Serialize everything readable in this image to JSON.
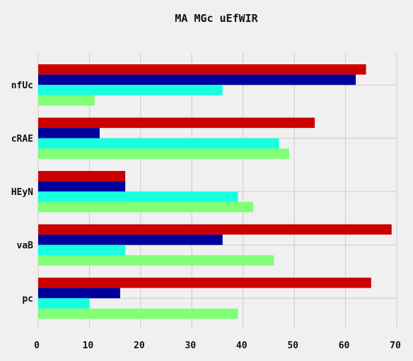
{
  "chart_data": {
    "type": "bar",
    "orientation": "horizontal",
    "title": "MA MGc uEfWIR",
    "xlabel": "",
    "ylabel": "",
    "categories": [
      "nfUc",
      "cRAE",
      "HEyN",
      "vaB",
      "pc"
    ],
    "xlim": [
      0,
      70
    ],
    "xticks": [
      0,
      10,
      20,
      30,
      40,
      50,
      60,
      70
    ],
    "grid": true,
    "legend": "none",
    "series": [
      {
        "color": "#cc0000",
        "values": [
          64,
          54,
          17,
          69,
          65
        ]
      },
      {
        "color": "#00009c",
        "values": [
          62,
          12,
          17,
          36,
          16
        ]
      },
      {
        "color": "#16ffe1",
        "values": [
          36,
          47,
          39,
          17,
          10
        ]
      },
      {
        "color": "#80ff77",
        "values": [
          11,
          49,
          42,
          46,
          39
        ]
      }
    ]
  }
}
